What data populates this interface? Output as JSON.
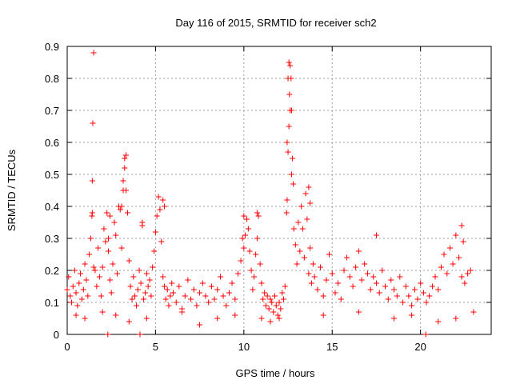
{
  "chart_data": {
    "type": "scatter",
    "title": "Day 116 of 2015, SRMTID for receiver sch2",
    "xlabel": "GPS time / hours",
    "ylabel": "SRMTID / TECUs",
    "xlim": [
      0,
      24
    ],
    "ylim": [
      0,
      0.9
    ],
    "xticks": [
      0,
      5,
      10,
      15,
      20
    ],
    "xtick_labels": [
      "0",
      "5",
      "10",
      "15",
      "20"
    ],
    "yticks": [
      0,
      0.1,
      0.2,
      0.3,
      0.4,
      0.5,
      0.6,
      0.7,
      0.8,
      0.9
    ],
    "ytick_labels": [
      "0",
      "0.1",
      "0.2",
      "0.3",
      "0.4",
      "0.5",
      "0.6",
      "0.7",
      "0.8",
      "0.9"
    ],
    "grid": true,
    "marker": "+",
    "color": "#ff0000",
    "series": [
      {
        "name": "sch2",
        "x": [
          0.0,
          0.08,
          0.17,
          0.25,
          0.33,
          0.42,
          0.5,
          0.58,
          0.67,
          0.75,
          0.83,
          0.92,
          1.0,
          1.08,
          1.17,
          1.25,
          1.33,
          1.4,
          1.42,
          1.45,
          1.5,
          1.58,
          1.67,
          1.75,
          1.83,
          1.92,
          2.0,
          2.08,
          2.17,
          2.25,
          2.33,
          2.42,
          2.5,
          2.58,
          2.67,
          2.75,
          2.83,
          2.92,
          3.0,
          3.08,
          3.17,
          3.25,
          3.33,
          3.42,
          3.5,
          3.58,
          3.67,
          3.75,
          3.83,
          3.92,
          4.0,
          4.08,
          4.17,
          4.25,
          4.33,
          4.42,
          4.5,
          4.58,
          4.67,
          4.75,
          4.83,
          4.92,
          5.0,
          5.08,
          5.17,
          5.25,
          5.33,
          5.42,
          5.5,
          5.58,
          5.67,
          5.75,
          5.83,
          5.92,
          6.0,
          6.17,
          6.33,
          6.5,
          6.67,
          6.83,
          7.0,
          7.17,
          7.33,
          7.5,
          7.67,
          7.83,
          8.0,
          8.17,
          8.33,
          8.5,
          8.67,
          8.83,
          9.0,
          9.17,
          9.33,
          9.5,
          9.67,
          9.83,
          10.0,
          10.08,
          10.17,
          10.25,
          10.33,
          10.42,
          10.5,
          10.58,
          10.67,
          10.75,
          10.83,
          10.92,
          11.0,
          11.08,
          11.17,
          11.25,
          11.33,
          11.42,
          11.5,
          11.58,
          11.67,
          11.75,
          11.83,
          11.92,
          12.0,
          12.08,
          12.17,
          12.25,
          12.33,
          12.42,
          12.45,
          12.5,
          12.55,
          12.58,
          12.62,
          12.67,
          12.7,
          12.75,
          12.8,
          12.83,
          12.92,
          13.0,
          13.08,
          13.17,
          13.25,
          13.33,
          13.42,
          13.5,
          13.58,
          13.67,
          13.75,
          13.83,
          13.92,
          14.0,
          14.17,
          14.33,
          14.5,
          14.67,
          14.83,
          15.0,
          15.17,
          15.33,
          15.5,
          15.67,
          15.83,
          16.0,
          16.17,
          16.33,
          16.5,
          16.67,
          16.83,
          17.0,
          17.17,
          17.33,
          17.5,
          17.67,
          17.83,
          18.0,
          18.17,
          18.33,
          18.5,
          18.67,
          18.83,
          19.0,
          19.17,
          19.33,
          19.5,
          19.67,
          19.83,
          20.0,
          20.17,
          20.33,
          20.5,
          20.67,
          20.83,
          21.0,
          21.17,
          21.33,
          21.5,
          21.67,
          21.83,
          22.0,
          22.17,
          22.33,
          22.5,
          22.67,
          22.83,
          1.42,
          1.5,
          2.33,
          2.42,
          3.08,
          3.17,
          3.25,
          3.33,
          4.25,
          5.42,
          5.5,
          9.92,
          10.0,
          10.75,
          12.45,
          12.5,
          12.55,
          12.62,
          12.7,
          13.67,
          13.75,
          17.5,
          22.33,
          22.42,
          0.5,
          1.0,
          2.0,
          2.75,
          3.5,
          4.5,
          6.5,
          7.5,
          8.5,
          9.5,
          11.0,
          11.5,
          12.0,
          14.5,
          16.5,
          18.5,
          19.5,
          21.0,
          22.0,
          23.0,
          2.3,
          4.12,
          20.3
        ],
        "y": [
          0.14,
          0.18,
          0.12,
          0.1,
          0.15,
          0.2,
          0.13,
          0.09,
          0.16,
          0.19,
          0.11,
          0.14,
          0.22,
          0.17,
          0.12,
          0.25,
          0.3,
          0.37,
          0.48,
          0.66,
          0.88,
          0.2,
          0.15,
          0.27,
          0.18,
          0.12,
          0.21,
          0.33,
          0.29,
          0.38,
          0.26,
          0.17,
          0.13,
          0.22,
          0.35,
          0.31,
          0.19,
          0.4,
          0.39,
          0.27,
          0.45,
          0.52,
          0.56,
          0.38,
          0.23,
          0.15,
          0.11,
          0.18,
          0.12,
          0.09,
          0.14,
          0.2,
          0.16,
          0.34,
          0.11,
          0.13,
          0.19,
          0.15,
          0.17,
          0.12,
          0.21,
          0.26,
          0.32,
          0.37,
          0.43,
          0.39,
          0.29,
          0.18,
          0.15,
          0.11,
          0.14,
          0.09,
          0.12,
          0.16,
          0.13,
          0.1,
          0.15,
          0.08,
          0.12,
          0.17,
          0.11,
          0.14,
          0.09,
          0.13,
          0.16,
          0.12,
          0.1,
          0.15,
          0.11,
          0.14,
          0.18,
          0.12,
          0.09,
          0.13,
          0.16,
          0.11,
          0.19,
          0.23,
          0.27,
          0.31,
          0.36,
          0.33,
          0.26,
          0.2,
          0.14,
          0.18,
          0.25,
          0.3,
          0.37,
          0.22,
          0.16,
          0.11,
          0.13,
          0.09,
          0.12,
          0.08,
          0.11,
          0.1,
          0.07,
          0.12,
          0.09,
          0.06,
          0.1,
          0.08,
          0.13,
          0.11,
          0.15,
          0.38,
          0.42,
          0.57,
          0.65,
          0.75,
          0.84,
          0.8,
          0.7,
          0.55,
          0.47,
          0.33,
          0.28,
          0.22,
          0.35,
          0.26,
          0.4,
          0.33,
          0.24,
          0.44,
          0.36,
          0.19,
          0.27,
          0.16,
          0.22,
          0.18,
          0.14,
          0.21,
          0.12,
          0.17,
          0.25,
          0.19,
          0.13,
          0.16,
          0.11,
          0.2,
          0.24,
          0.18,
          0.15,
          0.21,
          0.26,
          0.17,
          0.22,
          0.19,
          0.14,
          0.18,
          0.16,
          0.13,
          0.2,
          0.15,
          0.11,
          0.17,
          0.14,
          0.12,
          0.18,
          0.1,
          0.15,
          0.12,
          0.09,
          0.14,
          0.11,
          0.16,
          0.13,
          0.1,
          0.12,
          0.15,
          0.18,
          0.14,
          0.21,
          0.25,
          0.19,
          0.27,
          0.22,
          0.31,
          0.24,
          0.18,
          0.16,
          0.19,
          0.2,
          0.38,
          0.21,
          0.3,
          0.37,
          0.4,
          0.48,
          0.55,
          0.45,
          0.35,
          0.42,
          0.4,
          0.3,
          0.37,
          0.38,
          0.6,
          0.8,
          0.85,
          0.7,
          0.5,
          0.46,
          0.41,
          0.31,
          0.34,
          0.29,
          0.06,
          0.05,
          0.07,
          0.06,
          0.04,
          0.05,
          0.07,
          0.03,
          0.05,
          0.06,
          0.05,
          0.04,
          0.05,
          0.06,
          0.07,
          0.05,
          0.06,
          0.04,
          0.05,
          0.07,
          0.0,
          0.0,
          0.0
        ]
      }
    ]
  }
}
